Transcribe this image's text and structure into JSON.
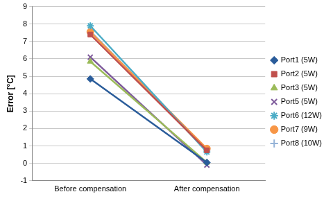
{
  "chart_data": {
    "type": "line",
    "y_label": "Error [°C]",
    "categories": [
      "Before compensation",
      "After compensation"
    ],
    "series": [
      {
        "name": "Port1 (5W)",
        "color": "#2a5c9a",
        "marker": "diamond",
        "values": [
          4.85,
          0.05
        ]
      },
      {
        "name": "Port2 (5W)",
        "color": "#c0504d",
        "marker": "square",
        "values": [
          7.4,
          0.75
        ]
      },
      {
        "name": "Port3 (5W)",
        "color": "#9bbb59",
        "marker": "triangle",
        "values": [
          5.85,
          0.05
        ]
      },
      {
        "name": "Port5 (5W)",
        "color": "#7e5a9b",
        "marker": "x",
        "values": [
          6.1,
          -0.1
        ]
      },
      {
        "name": "Port6 (12W)",
        "color": "#4bacc6",
        "marker": "star",
        "values": [
          7.9,
          0.65
        ]
      },
      {
        "name": "Port7 (9W)",
        "color": "#f79646",
        "marker": "circle",
        "values": [
          7.55,
          0.85
        ]
      },
      {
        "name": "Port8 (10W)",
        "color": "#95b3d7",
        "marker": "plus",
        "values": [
          7.6,
          0.75
        ]
      }
    ],
    "ylim": [
      -1,
      9
    ],
    "yticks": [
      -1,
      0,
      1,
      2,
      3,
      4,
      5,
      6,
      7,
      8,
      9
    ],
    "grid": true,
    "legend": "right"
  }
}
